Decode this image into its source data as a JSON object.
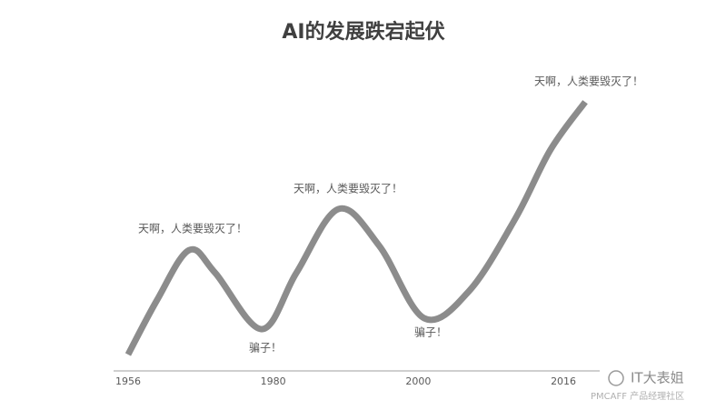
{
  "chart_data": {
    "type": "line",
    "title": "AI的发展跌宕起伏",
    "xticks": [
      {
        "value": 0,
        "label": "1956"
      },
      {
        "value": 1,
        "label": "1980"
      },
      {
        "value": 2,
        "label": "2000"
      },
      {
        "value": 3,
        "label": "2016"
      }
    ],
    "xlim": [
      -0.1,
      3.25
    ],
    "ylim": [
      0,
      100
    ],
    "x": [
      0,
      0.2,
      0.42,
      0.6,
      0.92,
      1.16,
      1.45,
      1.73,
      2.04,
      2.35,
      2.67,
      2.91,
      3.15
    ],
    "series": [
      {
        "color": "#8c8c8c",
        "values": [
          5.5,
          23.8,
          40.5,
          32.9,
          14,
          32.9,
          54.3,
          42,
          17.7,
          26.8,
          51.2,
          74.1,
          90.2
        ]
      }
    ],
    "annotations": [
      "天啊，人类要毁灭了！",
      "骗子！",
      "天啊，人类要毁灭了！",
      "骗子！",
      "天啊，人类要毁灭了！"
    ]
  },
  "watermark": {
    "name": "IT大表姐",
    "source": "PMCAFF 产品经理社区"
  }
}
